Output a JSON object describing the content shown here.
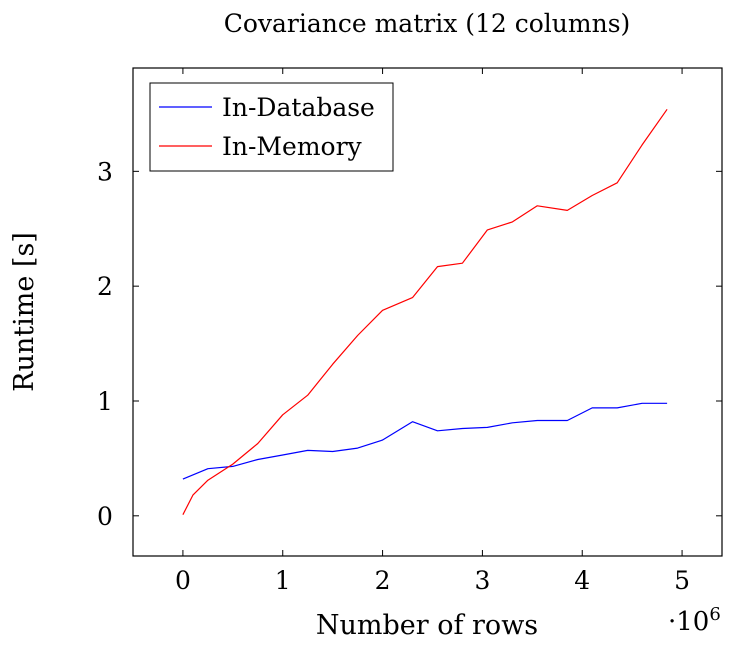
{
  "chart_data": {
    "type": "line",
    "title": "Covariance matrix (12 columns)",
    "xlabel": "Number of rows",
    "ylabel": "Runtime [s]",
    "x_multiplier_label": "·10",
    "x_multiplier_exponent": "6",
    "xlim": [
      -0.5,
      5.4
    ],
    "ylim": [
      -0.35,
      3.9
    ],
    "x_ticks": [
      0,
      1,
      2,
      3,
      4,
      5
    ],
    "y_ticks": [
      0,
      1,
      2,
      3
    ],
    "x_tick_labels": [
      "0",
      "1",
      "2",
      "3",
      "4",
      "5"
    ],
    "y_tick_labels": [
      "0",
      "1",
      "2",
      "3"
    ],
    "grid": false,
    "legend_position": "top-left",
    "series": [
      {
        "name": "In-Database",
        "color": "#0000ff",
        "x": [
          0,
          0.25,
          0.5,
          0.75,
          1.0,
          1.25,
          1.5,
          1.75,
          2.0,
          2.3,
          2.55,
          2.8,
          3.05,
          3.3,
          3.55,
          3.85,
          4.1,
          4.35,
          4.6,
          4.85
        ],
        "y": [
          0.32,
          0.41,
          0.43,
          0.49,
          0.53,
          0.57,
          0.56,
          0.59,
          0.66,
          0.82,
          0.74,
          0.76,
          0.77,
          0.81,
          0.83,
          0.83,
          0.94,
          0.94,
          0.98,
          0.98
        ]
      },
      {
        "name": "In-Memory",
        "color": "#ff0000",
        "x": [
          0,
          0.1,
          0.25,
          0.5,
          0.75,
          1.0,
          1.25,
          1.5,
          1.75,
          2.0,
          2.3,
          2.55,
          2.8,
          3.05,
          3.3,
          3.55,
          3.85,
          4.1,
          4.35,
          4.6,
          4.85
        ],
        "y": [
          0.01,
          0.18,
          0.31,
          0.45,
          0.63,
          0.88,
          1.05,
          1.32,
          1.57,
          1.79,
          1.9,
          2.17,
          2.2,
          2.49,
          2.56,
          2.7,
          2.66,
          2.79,
          2.9,
          3.23,
          3.54
        ]
      }
    ]
  }
}
